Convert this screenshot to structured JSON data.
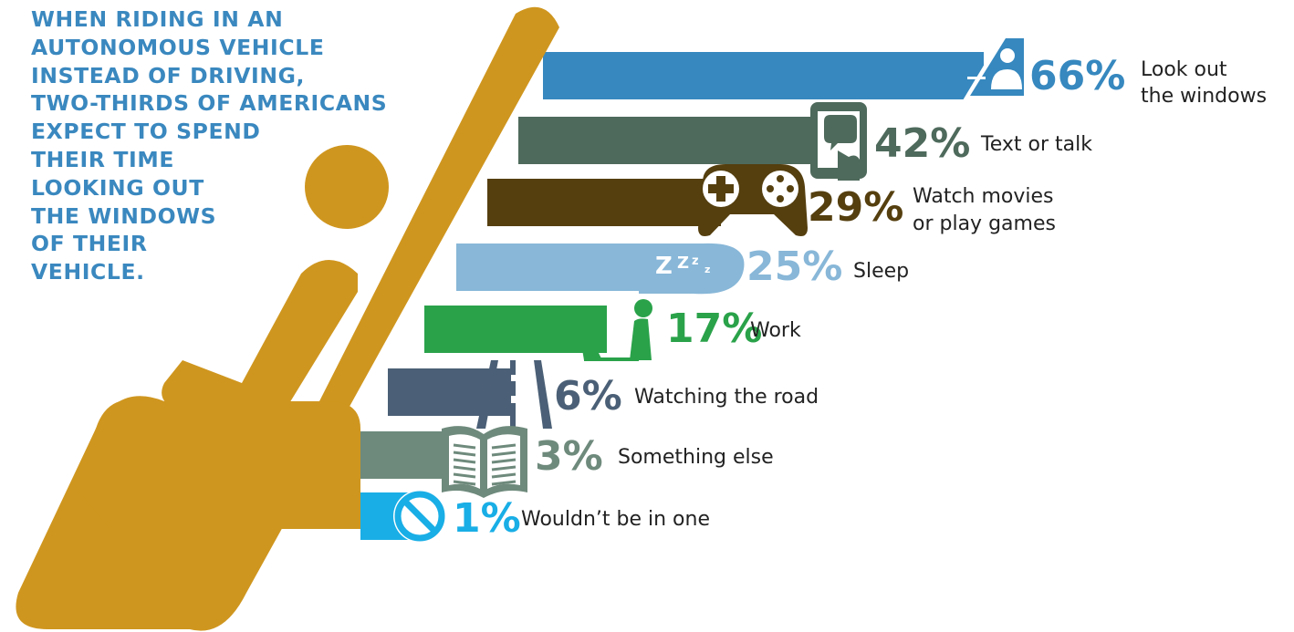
{
  "headline": {
    "lines": [
      "WHEN RIDING IN AN",
      "AUTONOMOUS VEHICLE",
      "INSTEAD OF DRIVING,",
      "TWO-THIRDS OF AMERICANS",
      "EXPECT TO SPEND",
      "THEIR TIME",
      "LOOKING OUT",
      "THE WINDOWS",
      "OF THEIR",
      "VEHICLE."
    ]
  },
  "chart_data": {
    "type": "bar",
    "orientation": "horizontal",
    "unit": "%",
    "categories": [
      "Look out the windows",
      "Text or talk",
      "Watch movies or play games",
      "Sleep",
      "Work",
      "Watching the road",
      "Something else",
      "Wouldn't be in one"
    ],
    "label_lines": [
      [
        "Look out",
        "the windows"
      ],
      [
        "Text or talk"
      ],
      [
        "Watch movies",
        "or play games"
      ],
      [
        "Sleep"
      ],
      [
        "Work"
      ],
      [
        "Watching the road"
      ],
      [
        "Something else"
      ],
      [
        "Wouldn’t be in one"
      ]
    ],
    "values": [
      66,
      42,
      29,
      25,
      17,
      6,
      3,
      1
    ],
    "value_labels": [
      "66%",
      "42%",
      "29%",
      "25%",
      "17%",
      "6%",
      "3%",
      "1%"
    ],
    "colors": [
      "#3688bf",
      "#4e6a5c",
      "#553f0f",
      "#88b7d8",
      "#2aa24a",
      "#4b6076",
      "#6e8a7c",
      "#19aee6"
    ],
    "icons": [
      "car-window-icon",
      "phone-chat-icon",
      "game-controller-icon",
      "sleep-zzz-icon",
      "laptop-worker-icon",
      "road-lanes-icon",
      "open-book-icon",
      "no-sign-icon"
    ],
    "seat_icon": "seated-passenger-icon",
    "seat_color": "#cf961f",
    "grid": false,
    "legend": "none"
  }
}
